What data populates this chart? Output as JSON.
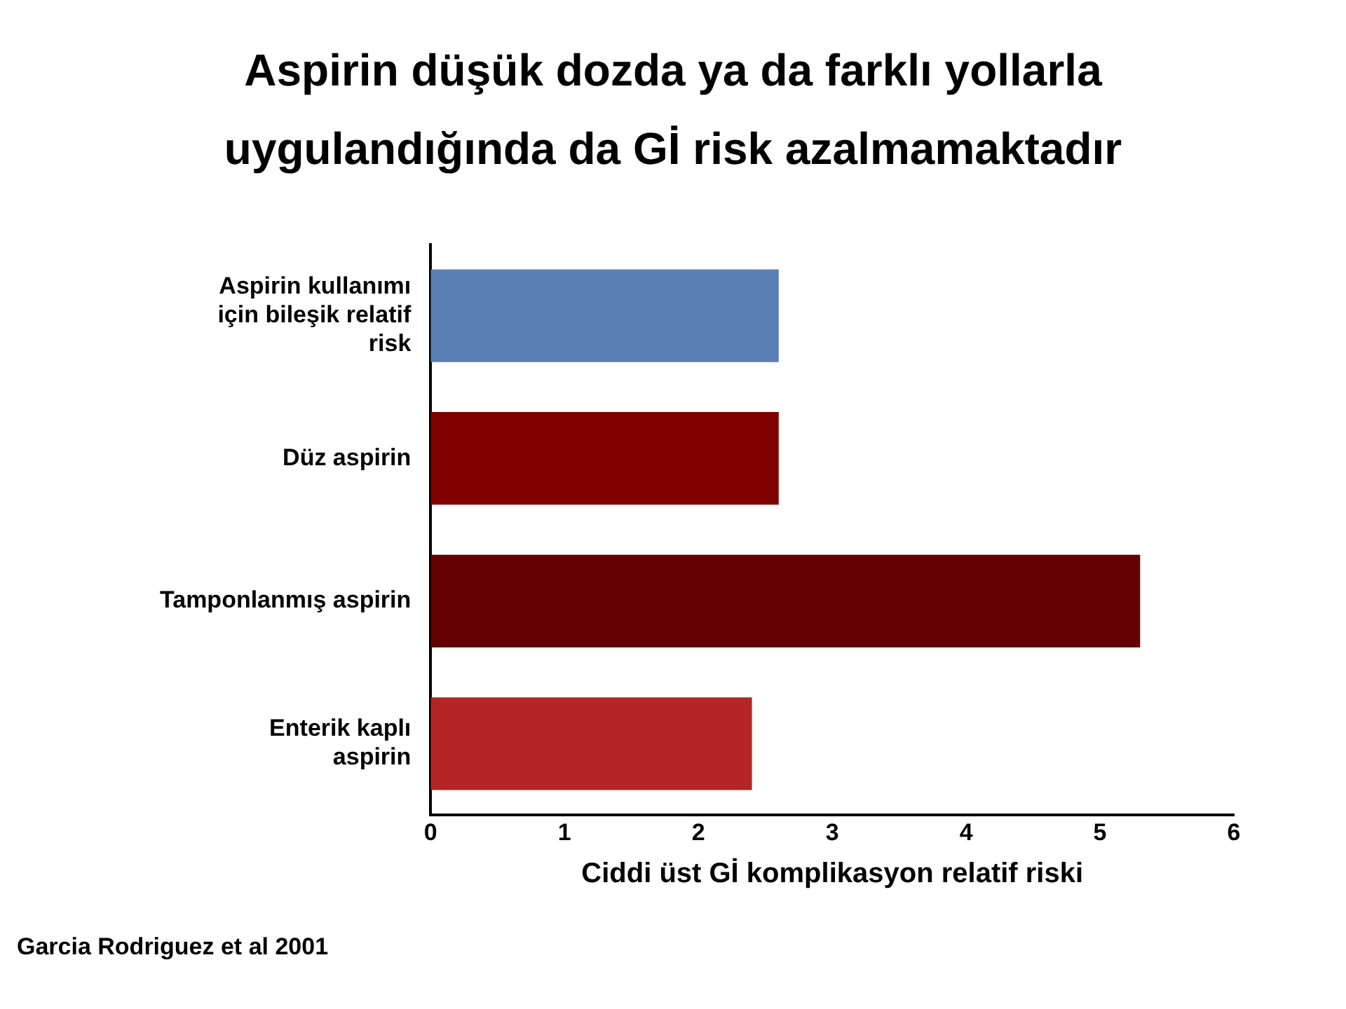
{
  "chart_data": {
    "type": "bar",
    "orientation": "horizontal",
    "title": "Aspirin düşük dozda ya da farklı yollarla uygulandığında da Gİ risk azalmamaktadır",
    "categories": [
      "Aspirin kullanımı için bileşik relatif risk",
      "Düz aspirin",
      "Tamponlanmış aspirin",
      "Enterik kaplı aspirin"
    ],
    "values": [
      2.6,
      2.6,
      5.3,
      2.4
    ],
    "colors": [
      "#5a7fb5",
      "#800000",
      "#630000",
      "#b52525"
    ],
    "xlabel": "Ciddi üst Gİ komplikasyon relatif riski",
    "xlim": [
      0,
      6
    ],
    "xticks": [
      0,
      1,
      2,
      3,
      4,
      5,
      6
    ],
    "grid": false,
    "legend": false,
    "annotations": [
      "Garcia Rodriguez et al 2001"
    ]
  }
}
